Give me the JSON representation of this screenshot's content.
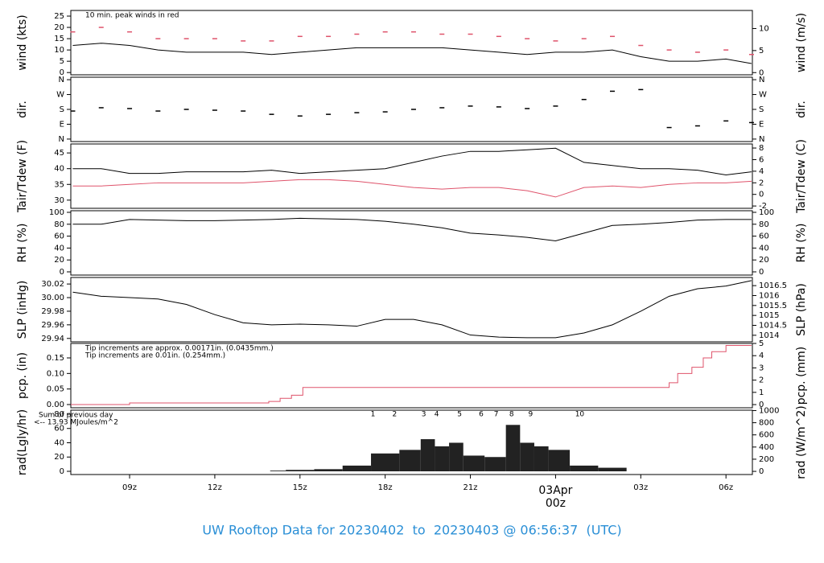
{
  "title": "UW Rooftop Data for 20230402  to  20230403 @ 06:56:37  (UTC)",
  "chart_data": [
    {
      "type": "line",
      "ylabel": "wind (kts)",
      "y2label": "wind (m/s)",
      "xlim": [
        6.93,
        30.93
      ],
      "ylim": [
        -1,
        27.5
      ],
      "yticks": [
        0,
        5,
        10,
        15,
        20,
        25
      ],
      "y2lim": [
        -0.5,
        14.1
      ],
      "y2ticks": [
        0,
        5,
        10
      ],
      "notes": [
        "10 min. peak winds in red"
      ],
      "note_colors": [
        "#df536b"
      ],
      "x": [
        7,
        8,
        9,
        10,
        11,
        12,
        13,
        14,
        15,
        16,
        17,
        18,
        19,
        20,
        21,
        22,
        23,
        24,
        25,
        26,
        27,
        28,
        29,
        30,
        30.9
      ],
      "series": [
        {
          "color": "#000000",
          "marker": "line",
          "values": [
            12,
            13,
            12,
            10,
            9,
            9,
            9,
            8,
            9,
            10,
            11,
            11,
            11,
            11,
            10,
            9,
            8,
            9,
            9,
            10,
            7,
            5,
            5,
            6,
            4
          ]
        },
        {
          "color": "#df536b",
          "marker": "dash",
          "values": [
            18,
            20,
            18,
            15,
            15,
            15,
            14,
            14,
            16,
            16,
            17,
            18,
            18,
            17,
            17,
            16,
            15,
            14,
            15,
            16,
            12,
            10,
            9,
            10,
            8
          ]
        }
      ]
    },
    {
      "type": "line",
      "ylabel": "dir.",
      "y2label": "dir.",
      "xlim": [
        6.93,
        30.93
      ],
      "ylim": [
        -15,
        375
      ],
      "yticks": [
        {
          "value": 0,
          "label": "N"
        },
        {
          "value": 90,
          "label": "E"
        },
        {
          "value": 180,
          "label": "S"
        },
        {
          "value": 270,
          "label": "W"
        },
        {
          "value": 360,
          "label": "N"
        }
      ],
      "y2lim": [
        -15,
        375
      ],
      "y2ticks": [
        {
          "value": 0,
          "label": "N"
        },
        {
          "value": 90,
          "label": "E"
        },
        {
          "value": 180,
          "label": "S"
        },
        {
          "value": 270,
          "label": "W"
        },
        {
          "value": 360,
          "label": "N"
        }
      ],
      "x": [
        7,
        8,
        9,
        10,
        11,
        12,
        13,
        14,
        15,
        16,
        17,
        18,
        19,
        20,
        21,
        22,
        23,
        24,
        25,
        26,
        27,
        28,
        29,
        30,
        30.9
      ],
      "series": [
        {
          "color": "#000000",
          "marker": "dash",
          "values": [
            170,
            190,
            185,
            170,
            180,
            175,
            170,
            150,
            140,
            150,
            160,
            165,
            180,
            190,
            200,
            195,
            185,
            200,
            240,
            290,
            300,
            70,
            80,
            110,
            100
          ]
        }
      ]
    },
    {
      "type": "line",
      "ylabel": "Tair/Tdew (F)",
      "y2label": "Tair/Tdew (C)",
      "xlim": [
        6.93,
        30.93
      ],
      "ylim": [
        27.4,
        47.85
      ],
      "yticks": [
        30,
        35,
        40,
        45
      ],
      "y2lim": [
        -2.4,
        8.7
      ],
      "y2ticks": [
        -2,
        0,
        2,
        4,
        6,
        8
      ],
      "x": [
        7,
        8,
        9,
        10,
        11,
        12,
        13,
        14,
        15,
        16,
        17,
        18,
        19,
        20,
        21,
        22,
        23,
        24,
        25,
        26,
        27,
        28,
        29,
        30,
        30.9
      ],
      "series": [
        {
          "color": "#000000",
          "marker": "line",
          "values": [
            40,
            40,
            38.5,
            38.5,
            39,
            39,
            39,
            39.5,
            38.5,
            39,
            39.5,
            40,
            42,
            44,
            45.5,
            45.5,
            46,
            46.5,
            42,
            41,
            40,
            40,
            39.5,
            38,
            39
          ]
        },
        {
          "color": "#df536b",
          "marker": "line",
          "values": [
            34.5,
            34.5,
            35,
            35.5,
            35.5,
            35.5,
            35.5,
            36,
            36.5,
            36.5,
            36,
            35,
            34,
            33.5,
            34,
            34,
            33,
            31,
            34,
            34.5,
            34,
            35,
            35.5,
            35.5,
            36
          ]
        }
      ]
    },
    {
      "type": "line",
      "ylabel": "RH (%)",
      "y2label": "RH (%)",
      "xlim": [
        6.93,
        30.93
      ],
      "ylim": [
        -5.4,
        102.7
      ],
      "yticks": [
        0,
        20,
        40,
        60,
        80,
        100
      ],
      "y2lim": [
        -5.4,
        102.7
      ],
      "y2ticks": [
        0,
        20,
        40,
        60,
        80,
        100
      ],
      "x": [
        7,
        8,
        9,
        10,
        11,
        12,
        13,
        14,
        15,
        16,
        17,
        18,
        19,
        20,
        21,
        22,
        23,
        24,
        25,
        26,
        27,
        28,
        29,
        30,
        30.9
      ],
      "series": [
        {
          "color": "#000000",
          "marker": "line",
          "values": [
            80,
            80,
            88,
            87,
            86,
            86,
            87,
            88,
            90,
            89,
            88,
            85,
            80,
            74,
            65,
            62,
            58,
            52,
            65,
            78,
            80,
            83,
            87,
            88,
            88
          ]
        }
      ]
    },
    {
      "type": "line",
      "ylabel": "SLP (inHg)",
      "y2label": "SLP (hPa)",
      "xlim": [
        6.93,
        30.93
      ],
      "ylim": [
        29.935,
        30.0296
      ],
      "yticks": [
        29.94,
        29.96,
        29.98,
        {
          "value": 30,
          "label": "30.00"
        },
        30.02
      ],
      "y2lim": [
        1013.67,
        1016.91
      ],
      "y2ticks": [
        1014,
        1014.5,
        1015,
        1015.5,
        1016,
        1016.5
      ],
      "x": [
        7,
        8,
        9,
        10,
        11,
        12,
        13,
        14,
        15,
        16,
        17,
        18,
        19,
        20,
        21,
        22,
        23,
        24,
        25,
        26,
        27,
        28,
        29,
        30,
        30.9
      ],
      "series": [
        {
          "color": "#000000",
          "marker": "line",
          "values": [
            30.008,
            30.002,
            30.0,
            29.998,
            29.99,
            29.975,
            29.963,
            29.96,
            29.961,
            29.96,
            29.958,
            29.968,
            29.968,
            29.96,
            29.945,
            29.942,
            29.941,
            29.941,
            29.948,
            29.96,
            29.98,
            30.002,
            30.013,
            30.017,
            30.025
          ]
        }
      ]
    },
    {
      "type": "line",
      "ylabel": "pcp. (in)",
      "y2label": "pcp. (mm)",
      "xlim": [
        6.93,
        30.93
      ],
      "ylim": [
        -0.0104,
        0.1966
      ],
      "yticks": [
        {
          "value": 0,
          "label": "0.00"
        },
        0.05,
        {
          "value": 0.1,
          "label": "0.10"
        },
        0.15
      ],
      "y2lim": [
        -0.26,
        5.0
      ],
      "y2ticks": [
        0,
        1,
        2,
        3,
        4,
        5
      ],
      "notes": [
        "Tip increments are approx. 0.00171in. (0.0435mm.)",
        "Tip increments are 0.01in. (0.254mm.)"
      ],
      "note_colors": [
        "#df536b",
        "#2a8fd6"
      ],
      "x": [
        6.93,
        9,
        13.9,
        14.3,
        14.7,
        15.1,
        27.7,
        28,
        28.3,
        28.8,
        29.2,
        29.5,
        30,
        30.9
      ],
      "series": [
        {
          "color": "#df536b",
          "marker": "step",
          "values": [
            0,
            0.005,
            0.01,
            0.02,
            0.03,
            0.055,
            0.055,
            0.07,
            0.1,
            0.12,
            0.15,
            0.17,
            0.19,
            0.19
          ]
        }
      ]
    },
    {
      "type": "bar",
      "ylabel": "rad(Lgly/hr)",
      "y2label": "rad (W/m^2)",
      "xlim": [
        6.93,
        30.93
      ],
      "ylim": [
        -4.5,
        85.6
      ],
      "yticks": [
        0,
        20,
        40,
        60,
        80
      ],
      "y2lim": [
        -52,
        1006
      ],
      "y2ticks": [
        0,
        200,
        400,
        600,
        800,
        1000
      ],
      "notes": [
        "Sum of previous day",
        "<-- 13.93 MJoules/m^2"
      ],
      "note_colors": [
        "#a020f0",
        "#a020f0"
      ],
      "sun_labels": [
        "1",
        "2",
        "3",
        "4",
        "5",
        "6",
        "7",
        "8",
        "9",
        "10"
      ],
      "sun_x": [
        17.57,
        18.33,
        19.36,
        19.81,
        20.62,
        21.38,
        21.91,
        22.45,
        23.12,
        24.85
      ],
      "xticks": [
        {
          "value": 9,
          "label": "09z"
        },
        {
          "value": 12,
          "label": "12z"
        },
        {
          "value": 15,
          "label": "15z"
        },
        {
          "value": 18,
          "label": "18z"
        },
        {
          "value": 21,
          "label": "21z"
        },
        {
          "value": 24,
          "label": "00z"
        },
        {
          "value": 27,
          "label": "03z"
        },
        {
          "value": 30,
          "label": "06z"
        }
      ],
      "date_label": {
        "text": "03Apr",
        "x": 24
      },
      "x": [
        13.9,
        14,
        15,
        16,
        17,
        18,
        19,
        19.5,
        20,
        20.5,
        21,
        22,
        22.5,
        23,
        23.5,
        24,
        25,
        26,
        27
      ],
      "series": [
        {
          "color": "#222222",
          "marker": "bar",
          "values": [
            0,
            1,
            2,
            3,
            8,
            25,
            30,
            45,
            35,
            40,
            22,
            20,
            65,
            40,
            35,
            30,
            8,
            5,
            0
          ]
        }
      ]
    }
  ]
}
